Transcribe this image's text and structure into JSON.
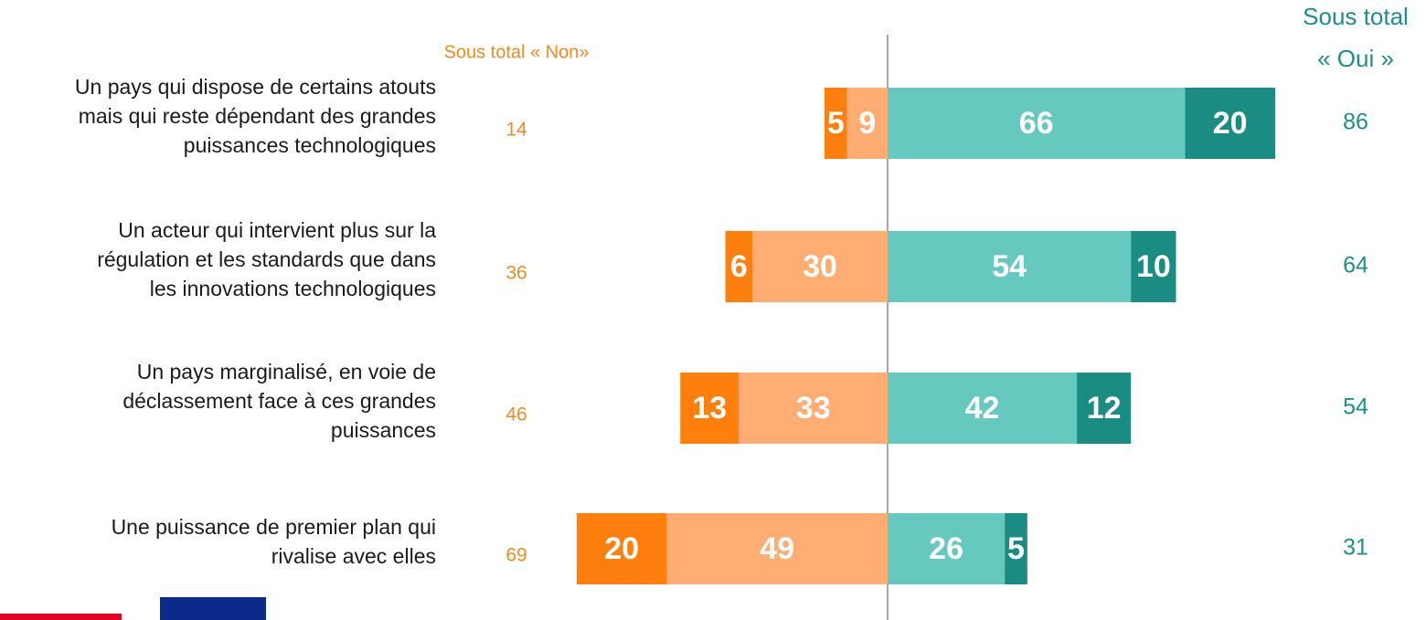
{
  "chart_data": {
    "type": "diverging-bar",
    "categories": [
      [
        "Un pays qui dispose de certains atouts",
        "mais qui reste dépendant des grandes",
        "puissances technologiques"
      ],
      [
        "Un acteur qui intervient plus sur la",
        "régulation et les standards que dans",
        "les innovations technologiques"
      ],
      [
        "Un pays marginalisé, en voie de",
        "déclassement face à ces grandes",
        "puissances"
      ],
      [
        "Une puissance de premier plan qui",
        "rivalise avec elles"
      ]
    ],
    "series": [
      {
        "color": "#ff7f0e",
        "side": "left",
        "values": [
          5,
          6,
          13,
          20
        ]
      },
      {
        "color": "#ffad73",
        "side": "left",
        "values": [
          9,
          30,
          33,
          49
        ]
      },
      {
        "color": "#66c9bf",
        "side": "right",
        "values": [
          66,
          54,
          42,
          26
        ]
      },
      {
        "color": "#1a8c82",
        "side": "right",
        "values": [
          20,
          10,
          12,
          5
        ]
      }
    ],
    "subtotal_left": {
      "title": "Sous total « Non»",
      "color": "#f28a1e",
      "values": [
        14,
        36,
        46,
        69
      ]
    },
    "subtotal_right": {
      "title": [
        "Sous total",
        "« Oui »"
      ],
      "color": "#1a9087",
      "values": [
        86,
        64,
        54,
        31
      ]
    }
  }
}
